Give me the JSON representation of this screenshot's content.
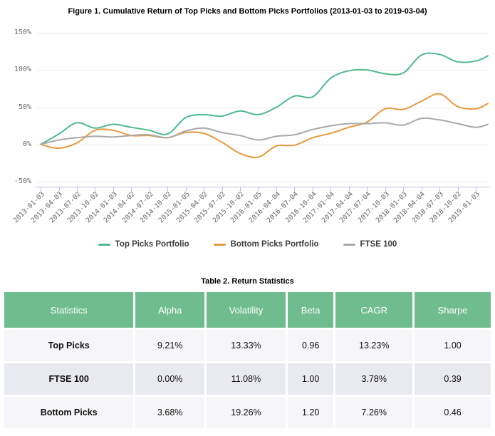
{
  "chart_data": {
    "type": "line",
    "title": "Figure 1. Cumulative Return of Top Picks and Bottom Picks Portfolios (2013-01-03 to 2019-03-04)",
    "xlabel": "",
    "ylabel": "",
    "y_unit": "%",
    "ylim": [
      -50,
      150
    ],
    "grid": true,
    "legend_position": "bottom",
    "y_tick_labels": [
      "150%",
      "100%",
      "50%",
      "0%",
      "-50%"
    ],
    "y_tick_values": [
      150,
      100,
      50,
      0,
      -50
    ],
    "x_axis_labels": [
      "2013-01-03",
      "2013-04-03",
      "2013-07-02",
      "2013-10-02",
      "2014-01-03",
      "2014-04-02",
      "2014-07-02",
      "2014-10-02",
      "2015-01-05",
      "2015-04-02",
      "2015-07-02",
      "2015-10-02",
      "2016-01-05",
      "2016-04-04",
      "2016-07-04",
      "2016-10-04",
      "2017-01-04",
      "2017-04-04",
      "2017-07-04",
      "2017-10-03",
      "2018-01-03",
      "2018-04-04",
      "2018-07-03",
      "2018-10-02",
      "2019-01-03"
    ],
    "x": [
      "2013-01-03",
      "2013-04-03",
      "2013-07-02",
      "2013-10-02",
      "2014-01-03",
      "2014-04-02",
      "2014-07-02",
      "2014-10-02",
      "2015-01-05",
      "2015-04-02",
      "2015-07-02",
      "2015-10-02",
      "2016-01-05",
      "2016-04-04",
      "2016-07-04",
      "2016-10-04",
      "2017-01-04",
      "2017-04-04",
      "2017-07-04",
      "2017-10-03",
      "2018-01-03",
      "2018-04-04",
      "2018-07-03",
      "2018-10-02",
      "2019-01-03",
      "2019-03-04"
    ],
    "series": [
      {
        "name": "Top Picks Portfolio",
        "color": "#4fba8c",
        "values": [
          0,
          14,
          29,
          22,
          27,
          23,
          19,
          14,
          36,
          40,
          38,
          45,
          40,
          50,
          65,
          64,
          89,
          99,
          100,
          95,
          96,
          120,
          121,
          111,
          112,
          119
        ]
      },
      {
        "name": "Bottom Picks Portfolio",
        "color": "#e8993d",
        "values": [
          0,
          -5,
          2,
          19,
          19,
          12,
          12,
          9,
          16,
          15,
          3,
          -12,
          -17,
          -2,
          -1,
          9,
          15,
          23,
          30,
          48,
          47,
          58,
          68,
          51,
          48,
          55
        ]
      },
      {
        "name": "FTSE 100",
        "color": "#a9a9a9",
        "values": [
          0,
          6,
          9,
          11,
          10,
          12,
          13,
          9,
          18,
          22,
          16,
          12,
          6,
          11,
          13,
          20,
          25,
          28,
          28,
          29,
          26,
          35,
          33,
          28,
          23,
          27
        ]
      }
    ]
  },
  "table": {
    "title": "Table 2. Return Statistics",
    "header_bg": "#6fbc8f",
    "columns": [
      "Statistics",
      "Alpha",
      "Volatility",
      "Beta",
      "CAGR",
      "Sharpe"
    ],
    "rows": [
      {
        "label": "Top Picks",
        "values": [
          "9.21%",
          "13.33%",
          "0.96",
          "13.23%",
          "1.00"
        ]
      },
      {
        "label": "FTSE 100",
        "values": [
          "0.00%",
          "11.08%",
          "1.00",
          "3.78%",
          "0.39"
        ]
      },
      {
        "label": "Bottom Picks",
        "values": [
          "3.68%",
          "19.26%",
          "1.20",
          "7.26%",
          "0.46"
        ]
      }
    ]
  }
}
